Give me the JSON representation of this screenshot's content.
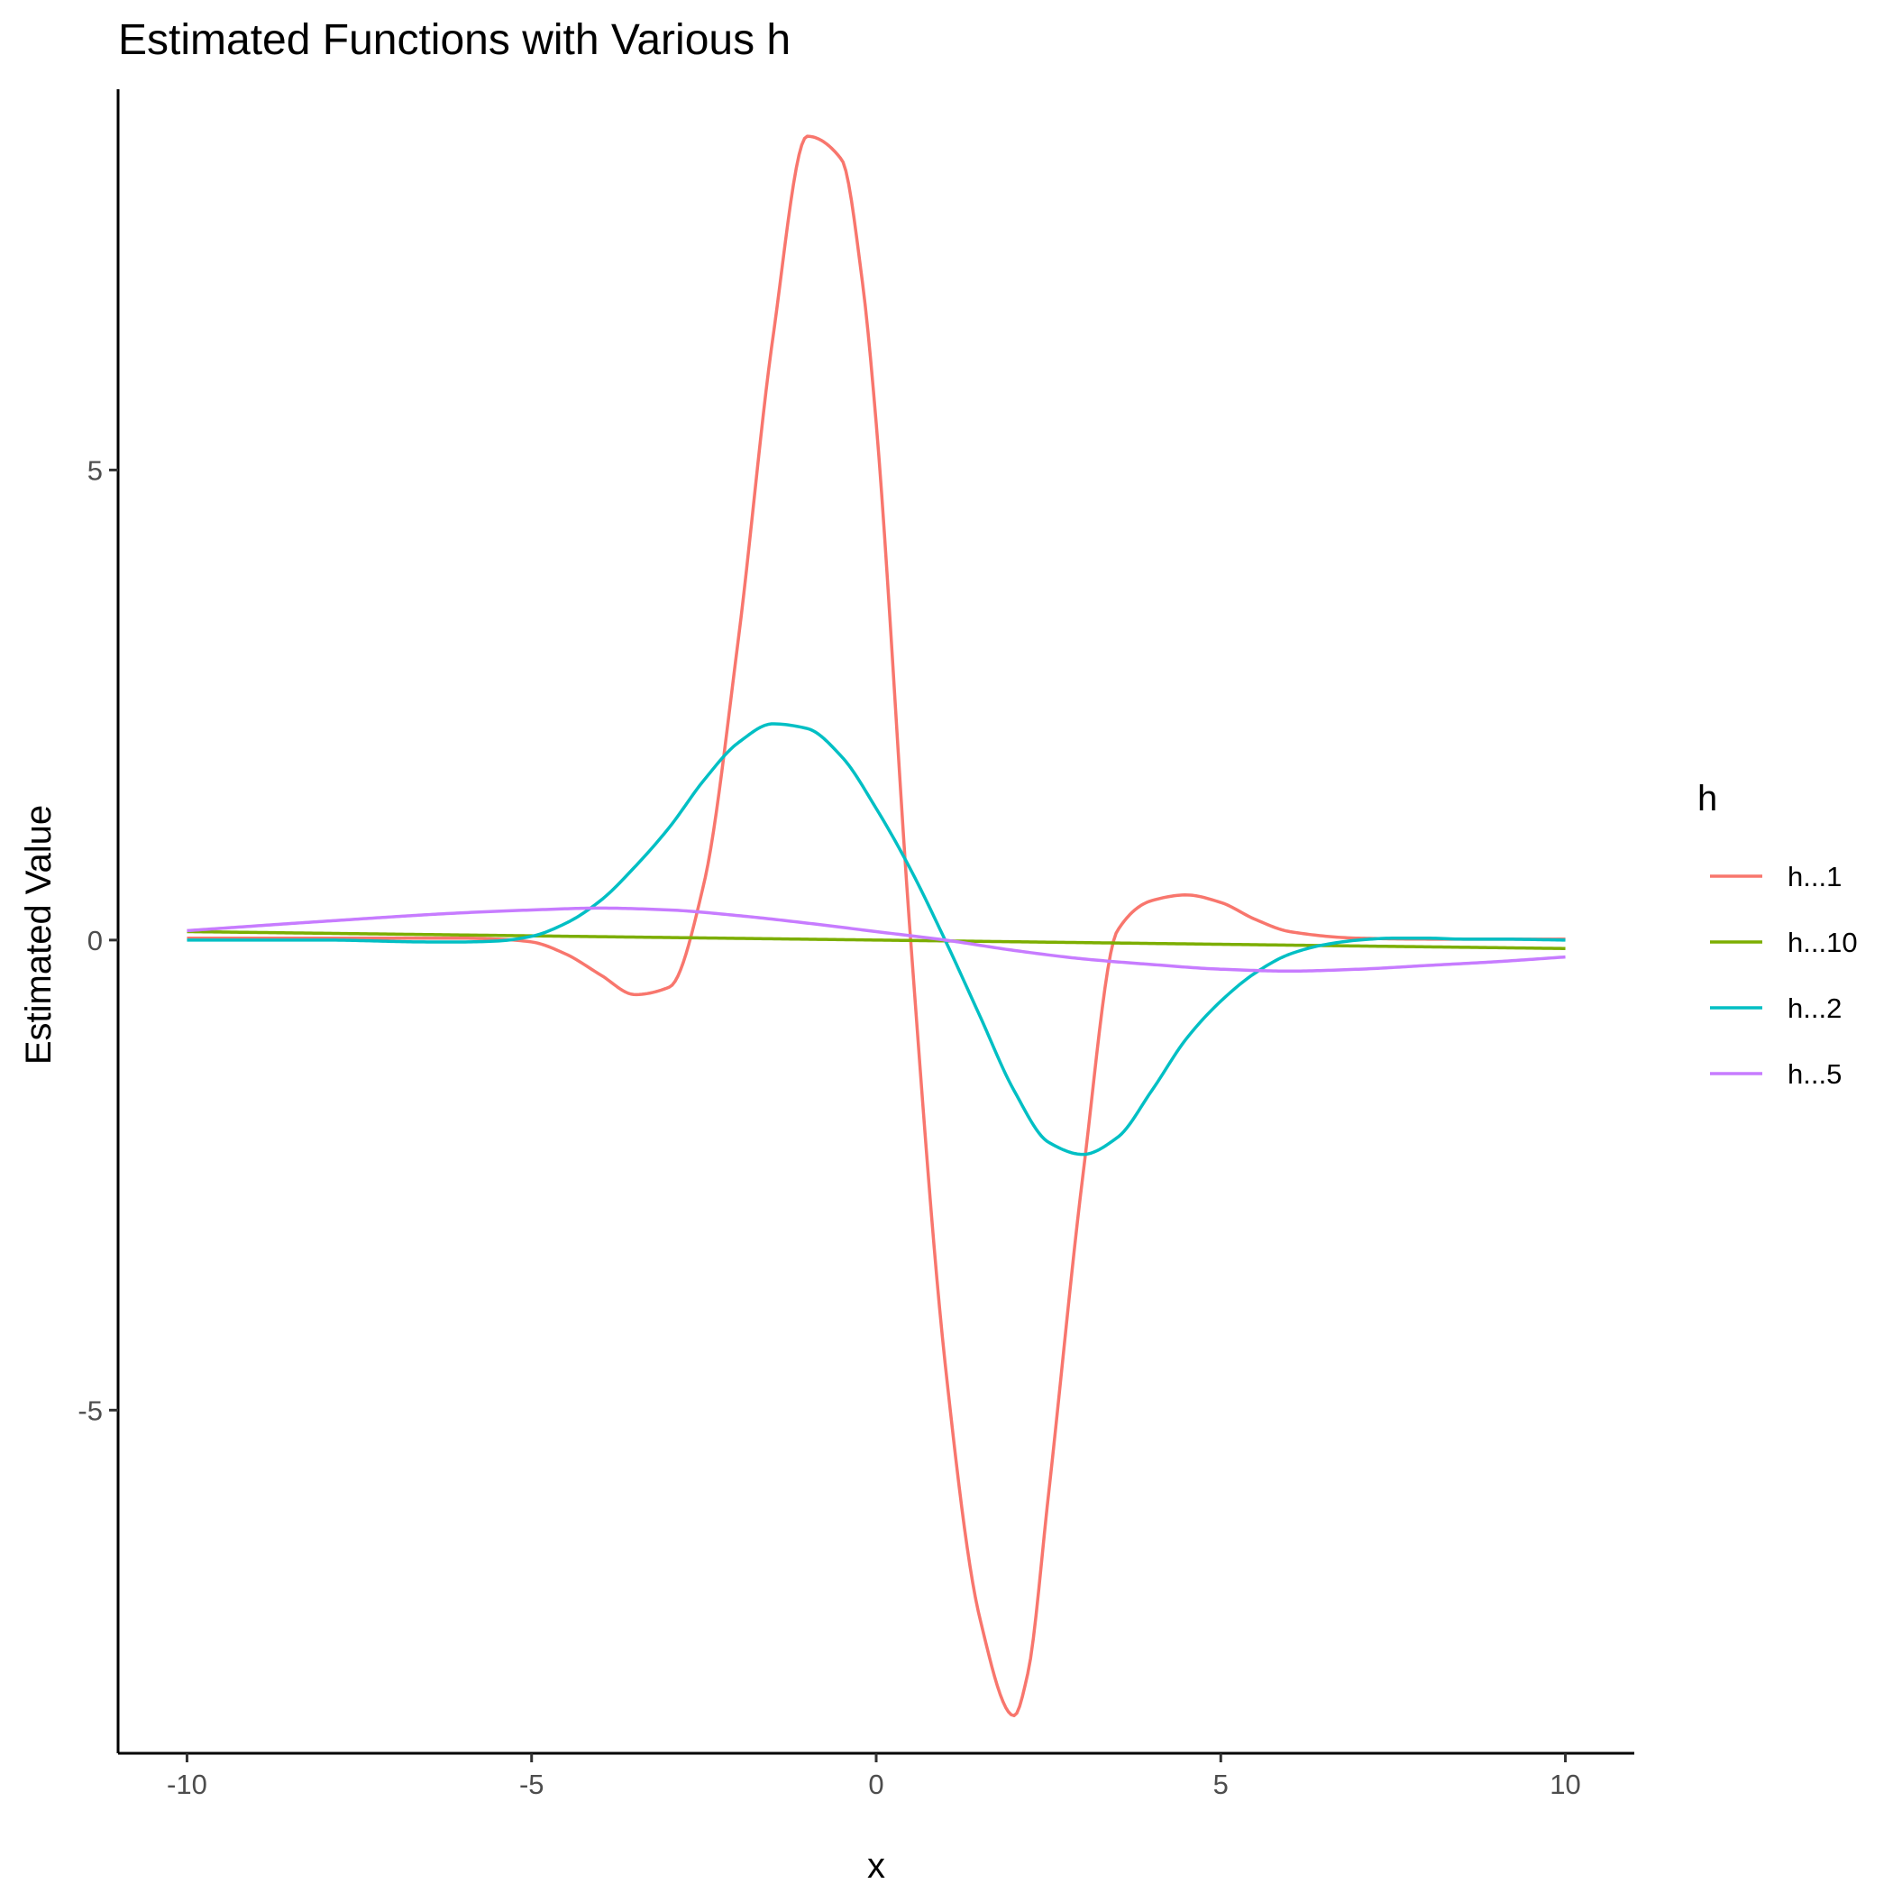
{
  "chart_data": {
    "type": "line",
    "title": "Estimated Functions with Various h",
    "xlabel": "x",
    "ylabel": "Estimated Value",
    "xlim": [
      -11,
      11
    ],
    "ylim": [
      -8.65,
      9.05
    ],
    "x_ticks": [
      -10,
      -5,
      0,
      5,
      10
    ],
    "x_tick_labels": [
      "-10",
      "-5",
      "0",
      "5",
      "10"
    ],
    "y_ticks": [
      -5,
      0,
      5
    ],
    "y_tick_labels": [
      "-5",
      "0",
      "5"
    ],
    "grid": false,
    "legend": {
      "title": "h",
      "position": "right"
    },
    "series": [
      {
        "name": "h...1",
        "color": "#F8766D",
        "x": [
          -10,
          -6,
          -5.5,
          -5,
          -4.5,
          -4,
          -3.5,
          -3,
          -2.5,
          -2,
          -1.5,
          -1,
          -0.5,
          -0.2,
          0,
          0.5,
          1,
          1.5,
          2,
          2.2,
          2.5,
          3,
          3.5,
          4,
          4.5,
          5,
          5.5,
          6,
          7,
          8,
          9,
          10
        ],
        "y": [
          0.02,
          0.02,
          0.01,
          -0.02,
          -0.15,
          -0.37,
          -0.58,
          -0.5,
          0.6,
          3.2,
          6.4,
          8.55,
          8.3,
          7.0,
          5.5,
          0.0,
          -4.5,
          -7.2,
          -8.25,
          -7.8,
          -5.9,
          -2.5,
          0.1,
          0.42,
          0.48,
          0.4,
          0.22,
          0.09,
          0.02,
          0.01,
          0.01,
          0.01
        ]
      },
      {
        "name": "h...10",
        "color": "#7CAE00",
        "x": [
          -10,
          10
        ],
        "y": [
          0.09,
          -0.09
        ]
      },
      {
        "name": "h...2",
        "color": "#00BFC4",
        "x": [
          -10,
          -8,
          -6.5,
          -6,
          -5.5,
          -5,
          -4.5,
          -4,
          -3.5,
          -3,
          -2.5,
          -2,
          -1.5,
          -1,
          -0.5,
          0,
          0.5,
          1,
          1.5,
          2,
          2.5,
          3,
          3.5,
          4,
          4.5,
          5,
          5.5,
          6,
          6.5,
          7,
          7.5,
          8,
          8.5,
          9,
          10
        ],
        "y": [
          0.0,
          0.0,
          -0.02,
          -0.02,
          -0.01,
          0.04,
          0.18,
          0.42,
          0.78,
          1.2,
          1.7,
          2.1,
          2.3,
          2.25,
          1.95,
          1.4,
          0.75,
          0.0,
          -0.8,
          -1.6,
          -2.15,
          -2.28,
          -2.1,
          -1.6,
          -1.05,
          -0.65,
          -0.35,
          -0.15,
          -0.05,
          0.0,
          0.02,
          0.02,
          0.01,
          0.01,
          0.0
        ]
      },
      {
        "name": "h...5",
        "color": "#C77CFF",
        "x": [
          -10,
          -8,
          -6,
          -5,
          -4,
          -3,
          -2,
          -1,
          0,
          1,
          2,
          3,
          4,
          5,
          6,
          7,
          8,
          9,
          10
        ],
        "y": [
          0.1,
          0.2,
          0.29,
          0.32,
          0.34,
          0.32,
          0.26,
          0.18,
          0.09,
          0.0,
          -0.11,
          -0.2,
          -0.26,
          -0.31,
          -0.33,
          -0.31,
          -0.27,
          -0.23,
          -0.18
        ]
      }
    ]
  }
}
